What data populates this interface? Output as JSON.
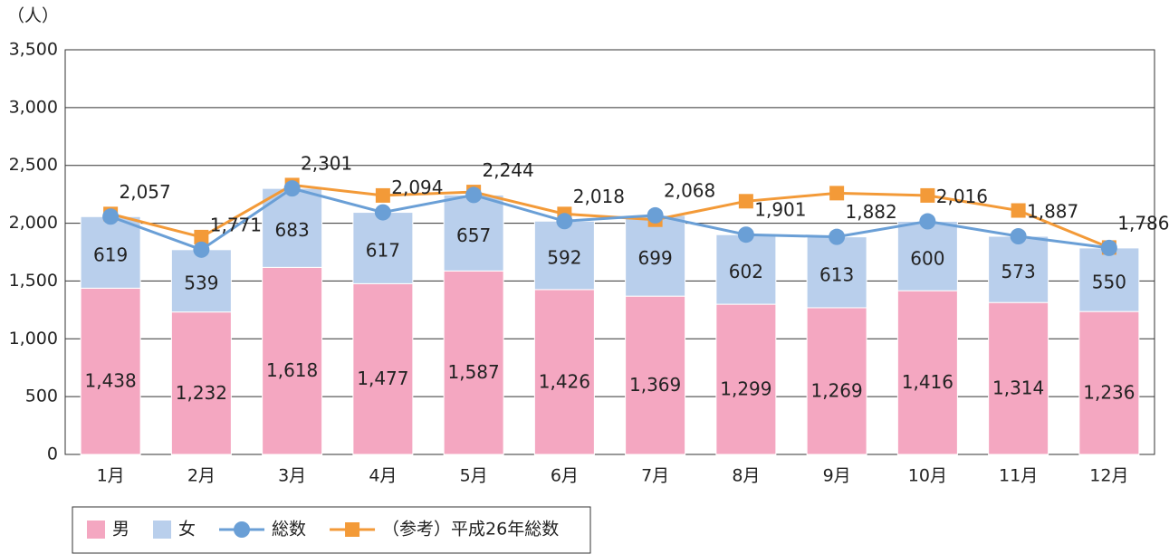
{
  "chart_data": {
    "type": "bar",
    "stacked": true,
    "y_label": "（人）",
    "categories": [
      "1月",
      "2月",
      "3月",
      "4月",
      "5月",
      "6月",
      "7月",
      "8月",
      "9月",
      "10月",
      "11月",
      "12月"
    ],
    "series": [
      {
        "name": "男",
        "type": "bar",
        "color": "#f4a7c1",
        "values": [
          1438,
          1232,
          1618,
          1477,
          1587,
          1426,
          1369,
          1299,
          1269,
          1416,
          1314,
          1236
        ],
        "value_labels": [
          "1,438",
          "1,232",
          "1,618",
          "1,477",
          "1,587",
          "1,426",
          "1,369",
          "1,299",
          "1,269",
          "1,416",
          "1,314",
          "1,236"
        ]
      },
      {
        "name": "女",
        "type": "bar",
        "color": "#b9cfec",
        "values": [
          619,
          539,
          683,
          617,
          657,
          592,
          699,
          602,
          613,
          600,
          573,
          550
        ]
      },
      {
        "name": "総数",
        "type": "line",
        "marker": "circle",
        "color": "#6a9fd6",
        "values": [
          2057,
          1771,
          2301,
          2094,
          2244,
          2018,
          2068,
          1901,
          1882,
          2016,
          1887,
          1786
        ],
        "value_labels": [
          "2,057",
          "1,771",
          "2,301",
          "2,094",
          "2,244",
          "2,018",
          "2,068",
          "1,901",
          "1,882",
          "2,016",
          "1,887",
          "1,786"
        ]
      },
      {
        "name": "（参考）平成26年総数",
        "type": "line",
        "marker": "square",
        "color": "#f39a38",
        "values": [
          2080,
          1880,
          2330,
          2240,
          2270,
          2080,
          2030,
          2190,
          2260,
          2240,
          2110,
          1790
        ]
      }
    ],
    "ylim": [
      0,
      3500
    ],
    "yticks": [
      0,
      500,
      {
        "value": 1000,
        "label": "1,000"
      },
      {
        "value": 1500,
        "label": "1,500"
      },
      {
        "value": 2000,
        "label": "2,000"
      },
      {
        "value": 2500,
        "label": "2,500"
      },
      {
        "value": 3000,
        "label": "3,000"
      },
      {
        "value": 3500,
        "label": "3,500"
      }
    ],
    "grid": true,
    "legend": "bottom-left"
  }
}
